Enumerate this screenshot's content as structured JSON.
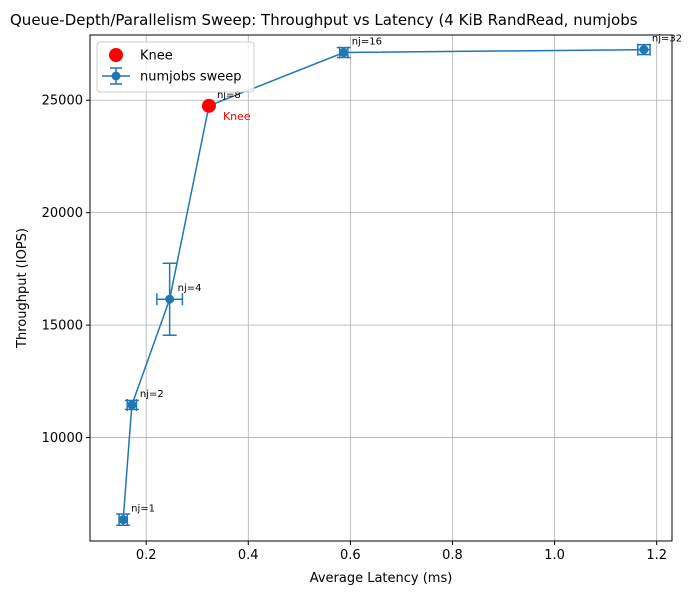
{
  "chart_data": {
    "type": "line",
    "title": "Queue-Depth/Parallelism Sweep: Throughput vs Latency (4 KiB RandRead, numjobs",
    "xlabel": "Average Latency (ms)",
    "ylabel": "Throughput (IOPS)",
    "xlim": [
      0.09,
      1.23
    ],
    "ylim": [
      5400,
      27900
    ],
    "x_ticks": [
      0.2,
      0.4,
      0.6,
      0.8,
      1.0,
      1.2
    ],
    "x_tick_labels": [
      "0.2",
      "0.4",
      "0.6",
      "0.8",
      "1.0",
      "1.2"
    ],
    "y_ticks": [
      10000,
      15000,
      20000,
      25000
    ],
    "y_tick_labels": [
      "10000",
      "15000",
      "20000",
      "25000"
    ],
    "grid": true,
    "legend_position": "top-left",
    "series": [
      {
        "name": "numjobs sweep",
        "color": "#1f77b4",
        "points": [
          {
            "label": "nj=1",
            "x": 0.155,
            "y": 6350,
            "xerr": 0.008,
            "yerr": 250
          },
          {
            "label": "nj=2",
            "x": 0.172,
            "y": 11450,
            "xerr": 0.009,
            "yerr": 200
          },
          {
            "label": "nj=4",
            "x": 0.246,
            "y": 16150,
            "xerr": 0.025,
            "yerr": 1600
          },
          {
            "label": "nj=8",
            "x": 0.323,
            "y": 24750,
            "xerr": 0.0,
            "yerr": 0
          },
          {
            "label": "nj=16",
            "x": 0.587,
            "y": 27120,
            "xerr": 0.008,
            "yerr": 220
          },
          {
            "label": "nj=32",
            "x": 1.175,
            "y": 27250,
            "xerr": 0.012,
            "yerr": 220
          }
        ]
      }
    ],
    "knee": {
      "name": "Knee",
      "x": 0.323,
      "y": 24750,
      "color": "#ff0000",
      "annotation": "Knee"
    }
  }
}
